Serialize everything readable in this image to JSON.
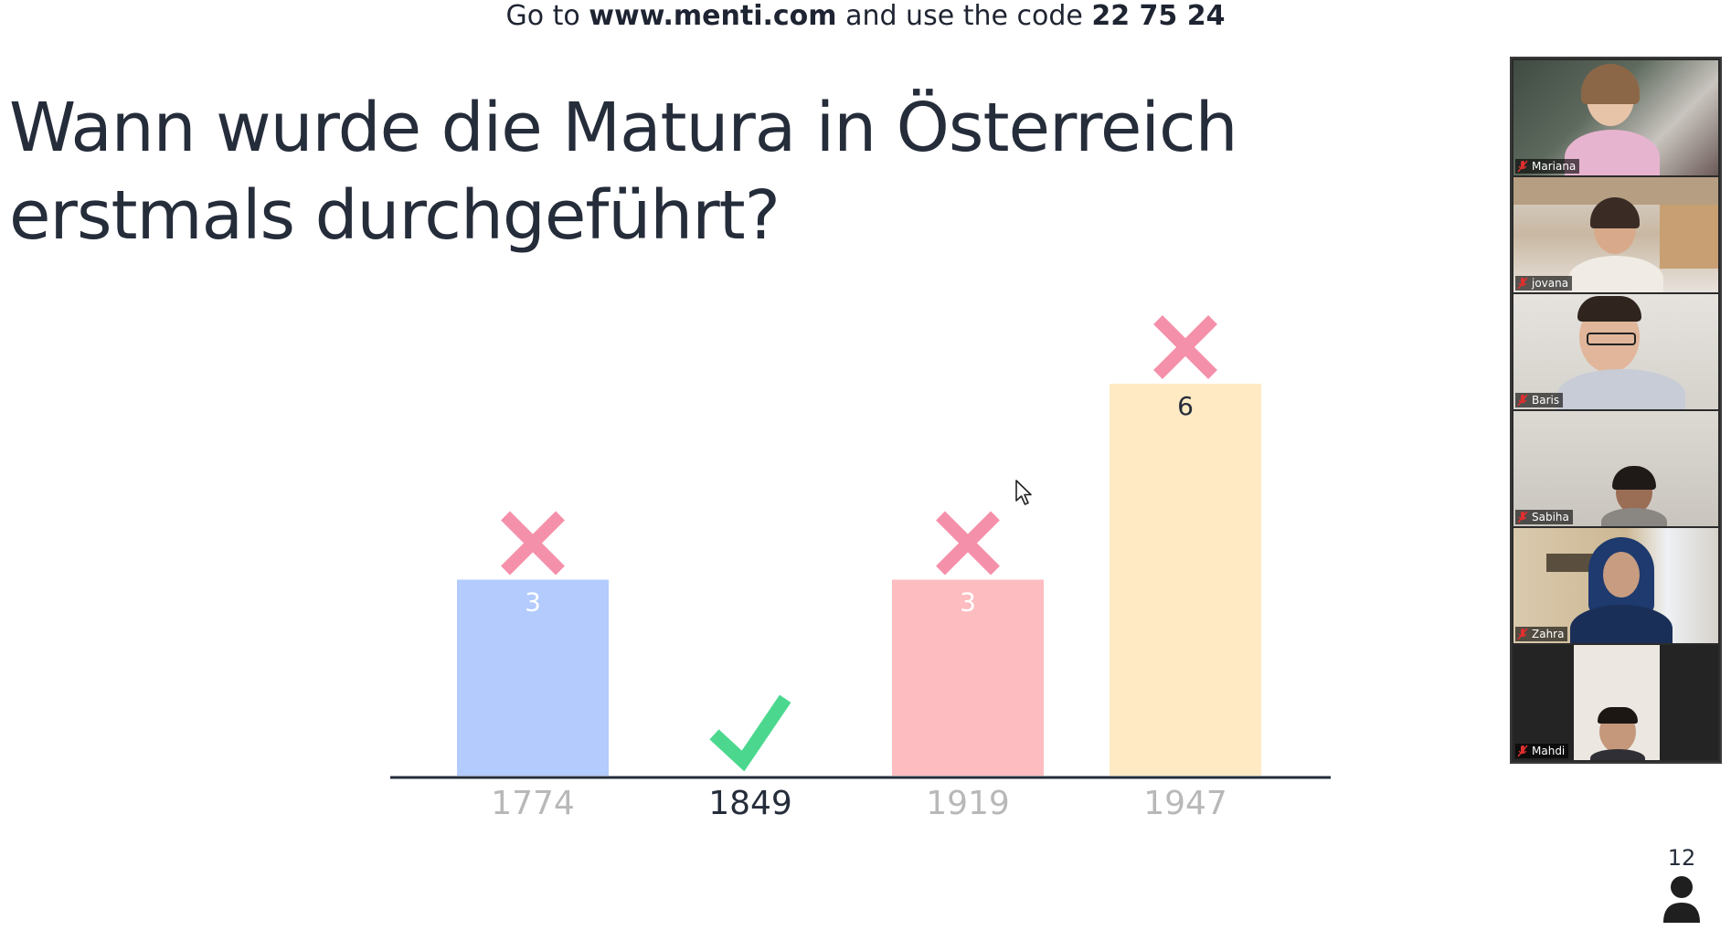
{
  "join_banner": {
    "prefix": "Go to ",
    "url": "www.menti.com",
    "middle": " and use the code ",
    "code": "22 75 24"
  },
  "question": {
    "title": "Wann wurde die Matura in Österreich erstmals durchgeführt?"
  },
  "chart_data": {
    "type": "bar",
    "categories": [
      "1774",
      "1849",
      "1919",
      "1947"
    ],
    "values": [
      3,
      0,
      3,
      6
    ],
    "value_labels": [
      "3",
      "",
      "3",
      "6"
    ],
    "correct": [
      false,
      true,
      false,
      false
    ],
    "colors": [
      "#b3cbfd",
      "#4bd88e",
      "#fdbcbf",
      "#ffeac3"
    ],
    "ylim": [
      0,
      6
    ]
  },
  "participants": [
    {
      "name": "Mariana",
      "muted": true
    },
    {
      "name": "jovana",
      "muted": true
    },
    {
      "name": "Baris",
      "muted": true
    },
    {
      "name": "Sabiha",
      "muted": true
    },
    {
      "name": "Zahra",
      "muted": true
    },
    {
      "name": "Mahdi",
      "muted": true
    }
  ],
  "response_count": {
    "value": "12",
    "icon": "person-icon"
  },
  "colors": {
    "wrong_mark": "#f590aa",
    "correct_mark": "#4bd88e",
    "axis": "#252c3a",
    "label_muted": "#b8b8b8",
    "label_correct": "#252c3a"
  }
}
